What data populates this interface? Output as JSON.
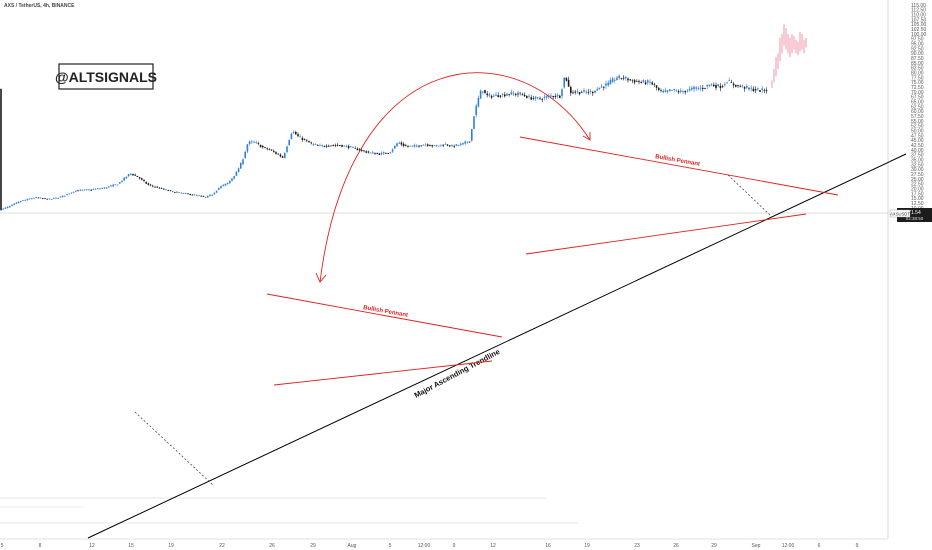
{
  "symbol_line": "AXS / TetherUS, 4h, BINANCE",
  "watermark": "@ALTSIGNALS",
  "current_price": "71.54",
  "price_label_small": "02:38:50",
  "symbol_tag": "AXSUSDT",
  "colors": {
    "up": "#2f7fe0",
    "down": "#1a1a1a",
    "projection": "#f08aa2",
    "pattern": "#e02020",
    "trendline": "#000000",
    "dashed": "#333333",
    "grid": "#eeeeee"
  },
  "chart_data": {
    "type": "candlestick",
    "y_axis": {
      "min": 5.0,
      "max": 115.0,
      "step": 2.5,
      "side": "right",
      "ticks": [
        "115.00",
        "112.50",
        "110.00",
        "107.50",
        "105.00",
        "102.50",
        "100.00",
        "97.50",
        "95.00",
        "92.50",
        "90.00",
        "87.50",
        "85.00",
        "82.50",
        "80.00",
        "77.50",
        "75.00",
        "72.50",
        "70.00",
        "67.50",
        "65.00",
        "62.50",
        "60.00",
        "57.50",
        "55.00",
        "52.50",
        "50.00",
        "47.50",
        "45.00",
        "42.50",
        "40.00",
        "37.50",
        "35.00",
        "32.50",
        "30.00",
        "27.50",
        "25.00",
        "22.50",
        "20.00",
        "17.50",
        "15.00",
        "12.50",
        "10.00",
        "7.50",
        "5.00"
      ]
    },
    "x_axis": {
      "ticks": [
        "5",
        "8",
        "12",
        "15",
        "19",
        "22",
        "26",
        "29",
        "Aug",
        "5",
        "12:00",
        "9",
        "12",
        "16",
        "19",
        "23",
        "26",
        "29",
        "Sep",
        "12:00",
        "6",
        "9"
      ]
    },
    "annotations": [
      {
        "kind": "pattern-label",
        "text": "Bullish Pennant"
      },
      {
        "kind": "pattern-label",
        "text": "Bullish Pennant"
      },
      {
        "kind": "trendline-label",
        "text": "Major Ascending Trendline"
      }
    ],
    "key_levels": [
      {
        "date": "Jul 26",
        "low": 35
      },
      {
        "date": "Jul 27",
        "high": 53
      },
      {
        "date": "Aug 10",
        "high": 77
      },
      {
        "date": "Aug 17",
        "high": 80
      },
      {
        "date": "Aug 31",
        "close": 71.5
      },
      {
        "projection_high": 105
      }
    ]
  }
}
